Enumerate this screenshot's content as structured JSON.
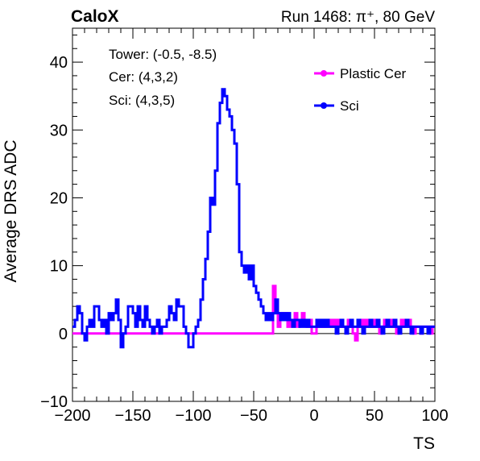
{
  "header": {
    "experiment": "CaloX",
    "run_info": "Run 1468: π⁺, 80 GeV"
  },
  "info_box": {
    "lines": [
      "Tower: (-0.5, -8.5)",
      "Cer: (4,3,2)",
      "Sci: (4,3,5)"
    ]
  },
  "colors": {
    "plastic_cer": "#ff00ff",
    "sci": "#0000ff",
    "axis": "#000000",
    "zero_line": "#000000"
  },
  "chart_data": {
    "type": "line",
    "style": "step",
    "xlabel": "TS",
    "ylabel": "Average DRS ADC",
    "xlim": [
      -200,
      100
    ],
    "ylim": [
      -10,
      45
    ],
    "x_ticks": [
      -200,
      -150,
      -100,
      -50,
      0,
      50,
      100
    ],
    "y_ticks": [
      -10,
      0,
      10,
      20,
      30,
      40
    ],
    "grid": false,
    "legend_placement": "top-right",
    "series": [
      {
        "name": "Plastic Cer",
        "color": "#ff00ff",
        "points": [
          [
            -200,
            0
          ],
          [
            -36,
            0
          ],
          [
            -34,
            7
          ],
          [
            -32,
            3
          ],
          [
            -30,
            1
          ],
          [
            -28,
            3
          ],
          [
            -26,
            2
          ],
          [
            -24,
            3
          ],
          [
            -22,
            1
          ],
          [
            -20,
            2
          ],
          [
            -18,
            2
          ],
          [
            -16,
            3
          ],
          [
            -14,
            1
          ],
          [
            -12,
            2
          ],
          [
            -10,
            3
          ],
          [
            -8,
            2
          ],
          [
            -6,
            1
          ],
          [
            -4,
            2
          ],
          [
            -2,
            0
          ],
          [
            0,
            0
          ],
          [
            2,
            1
          ],
          [
            4,
            1
          ],
          [
            6,
            2
          ],
          [
            8,
            1
          ],
          [
            10,
            2
          ],
          [
            12,
            1
          ],
          [
            14,
            2
          ],
          [
            16,
            1
          ],
          [
            18,
            2
          ],
          [
            20,
            1
          ],
          [
            22,
            2
          ],
          [
            24,
            1
          ],
          [
            26,
            1
          ],
          [
            28,
            2
          ],
          [
            30,
            1
          ],
          [
            32,
            0
          ],
          [
            34,
            -1
          ],
          [
            36,
            1
          ],
          [
            38,
            2
          ],
          [
            40,
            1
          ],
          [
            42,
            2
          ],
          [
            44,
            1
          ],
          [
            46,
            2
          ],
          [
            48,
            1
          ],
          [
            50,
            2
          ],
          [
            52,
            1
          ],
          [
            54,
            0
          ],
          [
            56,
            1
          ],
          [
            58,
            2
          ],
          [
            60,
            1
          ],
          [
            62,
            1
          ],
          [
            64,
            2
          ],
          [
            66,
            1
          ],
          [
            68,
            0
          ],
          [
            70,
            1
          ],
          [
            72,
            2
          ],
          [
            74,
            1
          ],
          [
            76,
            1
          ],
          [
            78,
            2
          ],
          [
            80,
            1
          ],
          [
            82,
            0
          ],
          [
            84,
            1
          ],
          [
            86,
            1
          ],
          [
            88,
            0
          ],
          [
            90,
            1
          ],
          [
            92,
            1
          ],
          [
            94,
            1
          ],
          [
            96,
            0
          ],
          [
            98,
            1
          ],
          [
            100,
            1
          ]
        ]
      },
      {
        "name": "Sci",
        "color": "#0000ff",
        "points": [
          [
            -200,
            1
          ],
          [
            -198,
            2
          ],
          [
            -196,
            4
          ],
          [
            -194,
            3
          ],
          [
            -192,
            0
          ],
          [
            -190,
            -1
          ],
          [
            -188,
            1
          ],
          [
            -186,
            2
          ],
          [
            -184,
            1
          ],
          [
            -182,
            4
          ],
          [
            -180,
            4
          ],
          [
            -178,
            2
          ],
          [
            -176,
            1
          ],
          [
            -174,
            2
          ],
          [
            -172,
            0
          ],
          [
            -170,
            3
          ],
          [
            -168,
            2
          ],
          [
            -166,
            3
          ],
          [
            -164,
            5
          ],
          [
            -162,
            2
          ],
          [
            -160,
            -2
          ],
          [
            -158,
            0
          ],
          [
            -156,
            1
          ],
          [
            -154,
            4
          ],
          [
            -152,
            4
          ],
          [
            -150,
            3
          ],
          [
            -148,
            1
          ],
          [
            -146,
            4
          ],
          [
            -144,
            2
          ],
          [
            -142,
            1
          ],
          [
            -140,
            4
          ],
          [
            -138,
            2
          ],
          [
            -136,
            1
          ],
          [
            -134,
            0
          ],
          [
            -132,
            1
          ],
          [
            -130,
            2
          ],
          [
            -128,
            0
          ],
          [
            -126,
            1
          ],
          [
            -124,
            1
          ],
          [
            -122,
            2
          ],
          [
            -120,
            4
          ],
          [
            -118,
            3
          ],
          [
            -116,
            2
          ],
          [
            -114,
            5
          ],
          [
            -112,
            4
          ],
          [
            -110,
            4
          ],
          [
            -108,
            1
          ],
          [
            -106,
            0
          ],
          [
            -104,
            -2
          ],
          [
            -102,
            -2
          ],
          [
            -100,
            0
          ],
          [
            -98,
            1
          ],
          [
            -96,
            2
          ],
          [
            -94,
            5
          ],
          [
            -92,
            8
          ],
          [
            -90,
            11
          ],
          [
            -88,
            15
          ],
          [
            -86,
            20
          ],
          [
            -84,
            19
          ],
          [
            -82,
            24
          ],
          [
            -80,
            31
          ],
          [
            -78,
            34
          ],
          [
            -76,
            36
          ],
          [
            -74,
            35
          ],
          [
            -72,
            33
          ],
          [
            -70,
            32
          ],
          [
            -68,
            30
          ],
          [
            -66,
            28
          ],
          [
            -64,
            22
          ],
          [
            -62,
            12
          ],
          [
            -60,
            10
          ],
          [
            -58,
            9
          ],
          [
            -56,
            10
          ],
          [
            -54,
            8
          ],
          [
            -52,
            10
          ],
          [
            -50,
            7
          ],
          [
            -48,
            6
          ],
          [
            -46,
            5
          ],
          [
            -44,
            4
          ],
          [
            -42,
            3
          ],
          [
            -40,
            2
          ],
          [
            -38,
            3
          ],
          [
            -36,
            2
          ],
          [
            -34,
            3
          ],
          [
            -32,
            5
          ],
          [
            -30,
            3
          ],
          [
            -28,
            2
          ],
          [
            -26,
            3
          ],
          [
            -24,
            2
          ],
          [
            -22,
            3
          ],
          [
            -20,
            2
          ],
          [
            -18,
            1
          ],
          [
            -16,
            2
          ],
          [
            -14,
            2
          ],
          [
            -12,
            1
          ],
          [
            -10,
            2
          ],
          [
            -8,
            1
          ],
          [
            -6,
            2
          ],
          [
            -4,
            1
          ],
          [
            -2,
            1
          ],
          [
            0,
            1
          ],
          [
            2,
            2
          ],
          [
            4,
            1
          ],
          [
            6,
            2
          ],
          [
            8,
            1
          ],
          [
            10,
            2
          ],
          [
            12,
            1
          ],
          [
            14,
            1
          ],
          [
            16,
            1
          ],
          [
            18,
            0
          ],
          [
            20,
            1
          ],
          [
            22,
            2
          ],
          [
            24,
            1
          ],
          [
            26,
            0
          ],
          [
            28,
            1
          ],
          [
            30,
            2
          ],
          [
            32,
            1
          ],
          [
            34,
            1
          ],
          [
            36,
            2
          ],
          [
            38,
            1
          ],
          [
            40,
            0
          ],
          [
            42,
            1
          ],
          [
            44,
            1
          ],
          [
            46,
            2
          ],
          [
            48,
            1
          ],
          [
            50,
            1
          ],
          [
            52,
            2
          ],
          [
            54,
            1
          ],
          [
            56,
            0
          ],
          [
            58,
            1
          ],
          [
            60,
            2
          ],
          [
            62,
            1
          ],
          [
            64,
            1
          ],
          [
            66,
            2
          ],
          [
            68,
            1
          ],
          [
            70,
            0
          ],
          [
            72,
            1
          ],
          [
            74,
            1
          ],
          [
            76,
            2
          ],
          [
            78,
            1
          ],
          [
            80,
            0
          ],
          [
            82,
            1
          ],
          [
            84,
            1
          ],
          [
            86,
            1
          ],
          [
            88,
            0
          ],
          [
            90,
            1
          ],
          [
            92,
            1
          ],
          [
            94,
            0
          ],
          [
            96,
            1
          ],
          [
            98,
            1
          ],
          [
            100,
            1
          ]
        ]
      }
    ]
  }
}
